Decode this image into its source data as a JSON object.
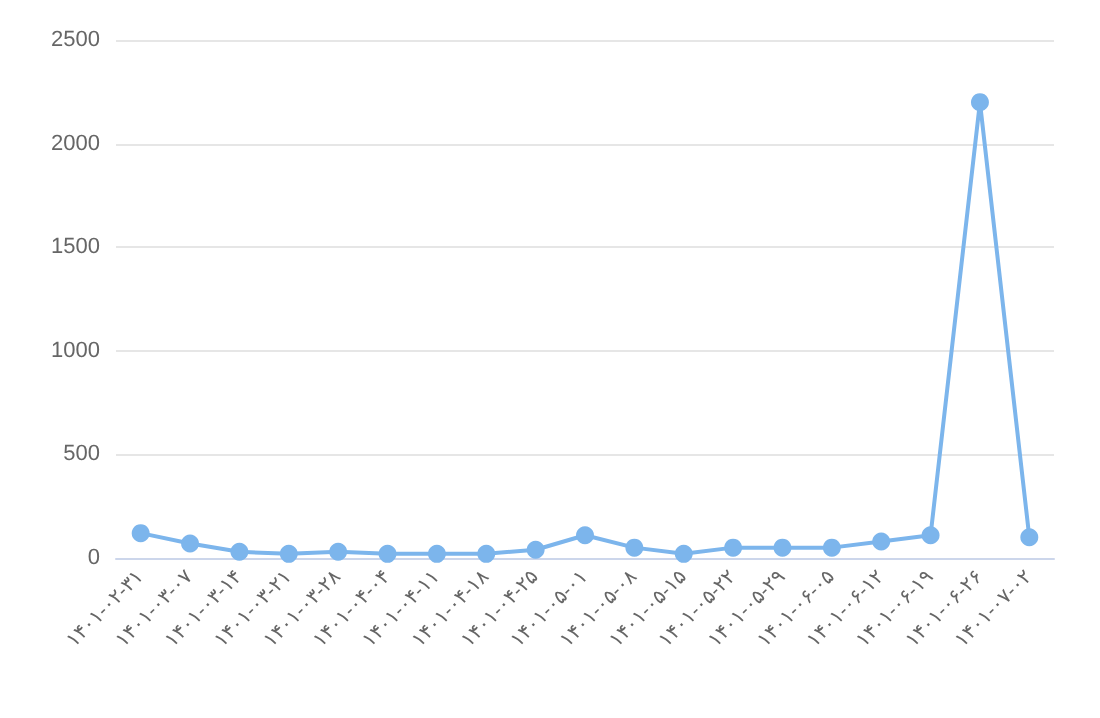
{
  "chart_data": {
    "type": "line",
    "categories": [
      "۱۴۰۱-۰۲-۳۱",
      "۱۴۰۱-۰۳-۰۷",
      "۱۴۰۱-۰۳-۱۴",
      "۱۴۰۱-۰۳-۲۱",
      "۱۴۰۱-۰۳-۲۸",
      "۱۴۰۱-۰۴-۰۴",
      "۱۴۰۱-۰۴-۱۱",
      "۱۴۰۱-۰۴-۱۸",
      "۱۴۰۱-۰۴-۲۵",
      "۱۴۰۱-۰۵-۰۱",
      "۱۴۰۱-۰۵-۰۸",
      "۱۴۰۱-۰۵-۱۵",
      "۱۴۰۱-۰۵-۲۲",
      "۱۴۰۱-۰۵-۲۹",
      "۱۴۰۱-۰۶-۰۵",
      "۱۴۰۱-۰۶-۱۲",
      "۱۴۰۱-۰۶-۱۹",
      "۱۴۰۱-۰۶-۲۶",
      "۱۴۰۱-۰۷-۰۲"
    ],
    "series": [
      {
        "color": "#7cb5ec",
        "values": [
          120,
          70,
          30,
          20,
          30,
          20,
          20,
          20,
          40,
          110,
          50,
          20,
          50,
          50,
          50,
          80,
          110,
          2200,
          100
        ]
      }
    ],
    "ylim": [
      0,
      2500
    ],
    "yticks": [
      0,
      500,
      1000,
      1500,
      2000,
      2500
    ],
    "grid": "y",
    "marker": "circle",
    "line_style": "solid"
  }
}
